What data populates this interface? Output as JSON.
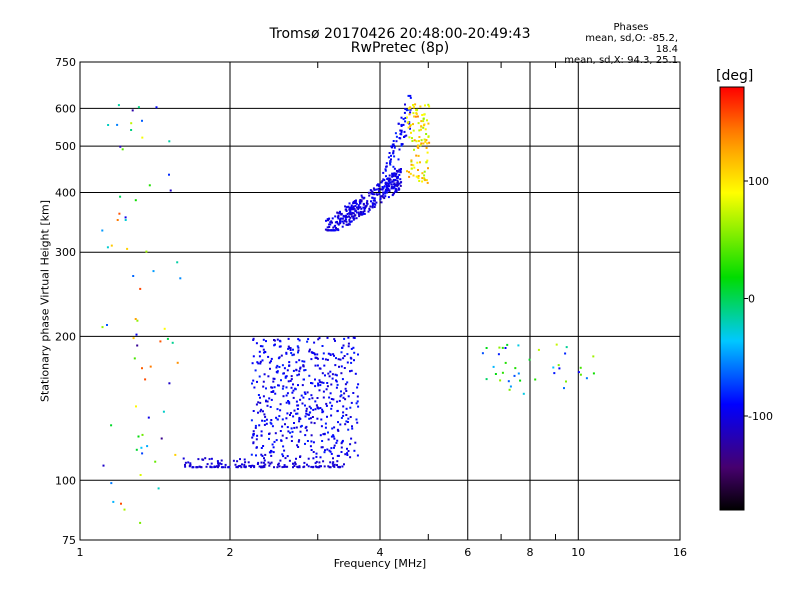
{
  "chart_data": {
    "type": "scatter",
    "title": "Tromsø 20170426 20:48:00-20:49:43",
    "subtitle": "RwPretec (8p)",
    "xlabel": "Frequency [MHz]",
    "ylabel": "Stationary phase Virtual Height [km]",
    "x_scale": "log",
    "y_scale": "log",
    "xlim": [
      1,
      16
    ],
    "ylim": [
      75,
      750
    ],
    "x_ticks": [
      1,
      2,
      4,
      6,
      8,
      10,
      16
    ],
    "x_tick_labels": [
      "1",
      "2",
      "4",
      "6",
      "8",
      "10",
      "16"
    ],
    "x_minor_ticks": [
      3,
      5,
      7,
      9
    ],
    "y_ticks": [
      75,
      100,
      200,
      300,
      400,
      500,
      600,
      750
    ],
    "y_tick_labels": [
      "75",
      "100",
      "200",
      "300",
      "400",
      "500",
      "600",
      "750"
    ],
    "grid": true,
    "phases_panel": {
      "heading": "Phases",
      "line_o": "mean, sd,O: -85.2, 18.4",
      "line_x": "mean, sd,X:  94.3, 25.1"
    },
    "colorbar": {
      "label": "[deg]",
      "range": [
        -180,
        180
      ],
      "ticks": [
        100,
        0,
        -100
      ],
      "tick_labels": [
        "100",
        "0",
        "-100"
      ]
    },
    "series": [
      {
        "name": "",
        "color_by": "phase",
        "clusters": [
          {
            "x": [
              1.6,
              3.4
            ],
            "y": [
              107,
              112
            ],
            "phase": [
              -110,
              -100
            ]
          },
          {
            "x": [
              2.2,
              3.6
            ],
            "y": [
              112,
              200
            ],
            "phase": [
              -110,
              -80
            ]
          },
          {
            "x": [
              3.1,
              4.4
            ],
            "y": [
              335,
              450
            ],
            "phase": [
              -115,
              -90
            ]
          },
          {
            "x": [
              4.0,
              4.6
            ],
            "y": [
              400,
              640
            ],
            "phase": [
              -105,
              -80
            ]
          },
          {
            "x": [
              4.5,
              5.0
            ],
            "y": [
              420,
              620
            ],
            "phase": [
              60,
              140
            ]
          },
          {
            "x": [
              6.4,
              10.8
            ],
            "y": [
              150,
              195
            ],
            "phase": [
              -100,
              80
            ]
          },
          {
            "x": [
              1.1,
              1.6
            ],
            "y": [
              80,
              650
            ],
            "phase": [
              -140,
              160
            ]
          }
        ]
      }
    ]
  }
}
